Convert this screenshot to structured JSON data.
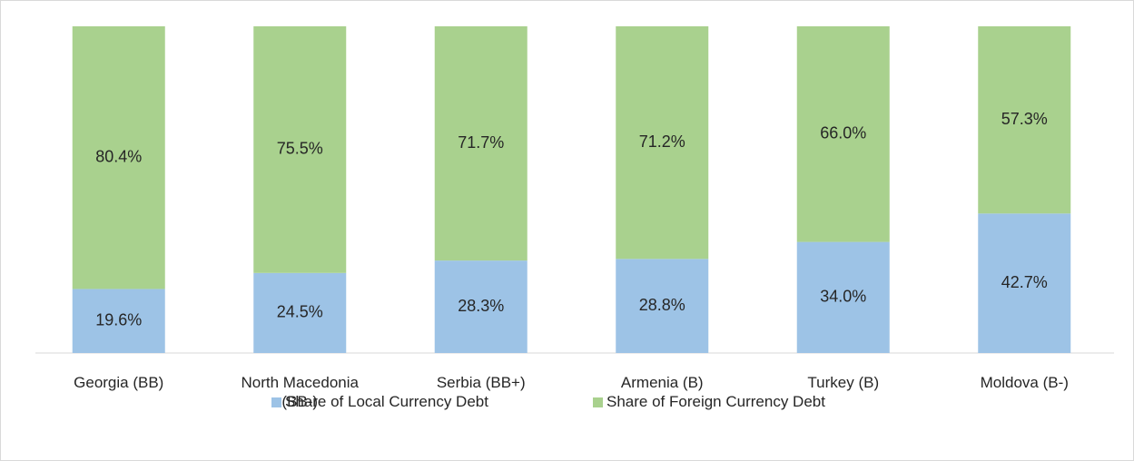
{
  "chart_data": {
    "type": "stacked_bar",
    "categories": [
      "Georgia (BB)",
      "North Macedonia (BB-)",
      "Serbia (BB+)",
      "Armenia (B)",
      "Turkey (B)",
      "Moldova (B-)"
    ],
    "series": [
      {
        "name": "Share of Local Currency Debt",
        "color": "#9dc3e6",
        "values": [
          19.6,
          24.5,
          28.3,
          28.8,
          34.0,
          42.7
        ],
        "value_labels": [
          "19.6%",
          "24.5%",
          "28.3%",
          "28.8%",
          "34.0%",
          "42.7%"
        ]
      },
      {
        "name": "Share of Foreign Currency Debt",
        "color": "#a9d18e",
        "values": [
          80.4,
          75.5,
          71.7,
          71.2,
          66.0,
          57.3
        ],
        "value_labels": [
          "80.4%",
          "75.5%",
          "71.7%",
          "71.2%",
          "66.0%",
          "57.3%"
        ]
      }
    ],
    "legend": "bottom"
  }
}
